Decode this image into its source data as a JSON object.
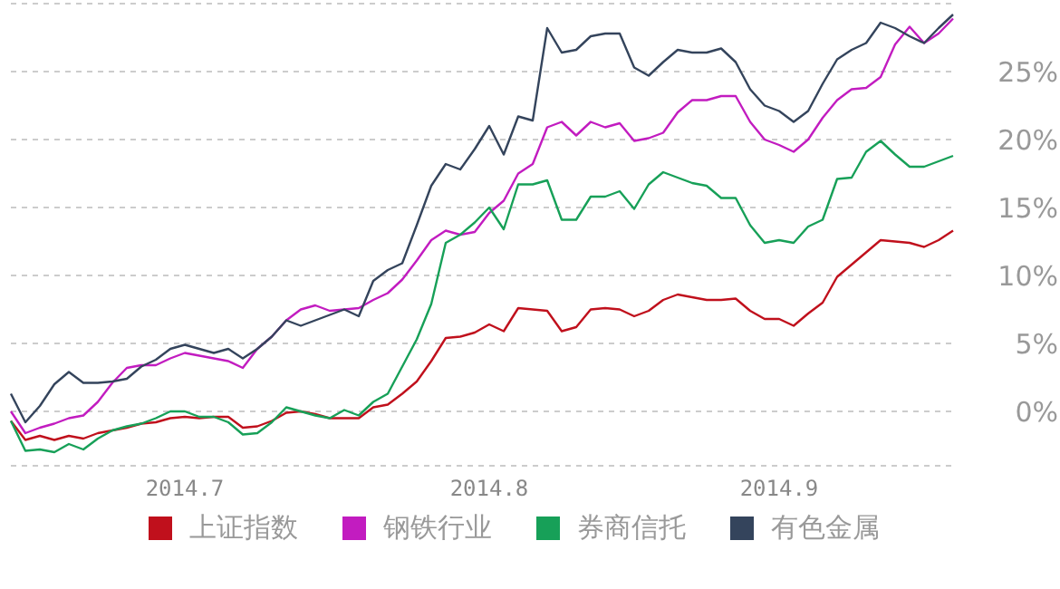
{
  "chart_data": {
    "type": "line",
    "categories": [
      null,
      null,
      null,
      null,
      null,
      null,
      null,
      null,
      null,
      null,
      null,
      null,
      "2014.7",
      null,
      null,
      null,
      null,
      null,
      null,
      null,
      null,
      null,
      null,
      null,
      null,
      null,
      null,
      null,
      null,
      null,
      null,
      null,
      null,
      "2014.8",
      null,
      null,
      null,
      null,
      null,
      null,
      null,
      null,
      null,
      null,
      null,
      null,
      null,
      null,
      null,
      null,
      null,
      null,
      null,
      "2014.9",
      null,
      null,
      null,
      null,
      null,
      null,
      null,
      null,
      null,
      null,
      null,
      null
    ],
    "series": [
      {
        "name": "上证指数",
        "color": "#c0101c",
        "values": [
          -0.7,
          -2.1,
          -1.8,
          -2.1,
          -1.8,
          -2.0,
          -1.6,
          -1.4,
          -1.2,
          -0.9,
          -0.8,
          -0.5,
          -0.4,
          -0.5,
          -0.4,
          -0.4,
          -1.2,
          -1.1,
          -0.7,
          -0.1,
          0,
          -0.2,
          -0.5,
          -0.5,
          -0.5,
          0.3,
          0.5,
          1.3,
          2.2,
          3.7,
          5.4,
          5.5,
          5.8,
          6.4,
          5.9,
          7.6,
          7.5,
          7.4,
          5.9,
          6.2,
          7.5,
          7.6,
          7.5,
          7.0,
          7.4,
          8.2,
          8.6,
          8.4,
          8.2,
          8.2,
          8.3,
          7.4,
          6.8,
          6.8,
          6.3,
          7.2,
          8.0,
          9.9,
          10.8,
          11.7,
          12.6,
          12.5,
          12.4,
          12.1,
          12.6,
          13.3
        ]
      },
      {
        "name": "钢铁行业",
        "color": "#c21cc0",
        "values": [
          0,
          -1.6,
          -1.2,
          -0.9,
          -0.5,
          -0.3,
          0.7,
          2.1,
          3.2,
          3.4,
          3.4,
          3.9,
          4.3,
          4.1,
          3.9,
          3.7,
          3.2,
          4.6,
          5.5,
          6.7,
          7.5,
          7.8,
          7.4,
          7.5,
          7.6,
          8.2,
          8.7,
          9.7,
          11.1,
          12.6,
          13.3,
          13.0,
          13.2,
          14.6,
          15.5,
          17.5,
          18.2,
          20.9,
          21.3,
          20.3,
          21.3,
          20.9,
          21.2,
          19.9,
          20.1,
          20.5,
          22.0,
          22.9,
          22.9,
          23.2,
          23.2,
          21.3,
          20.0,
          19.6,
          19.1,
          20.0,
          21.6,
          22.9,
          23.7,
          23.8,
          24.6,
          27.0,
          28.3,
          27.1,
          27.8,
          28.9
        ]
      },
      {
        "name": "券商信托",
        "color": "#17a058",
        "values": [
          -0.7,
          -2.9,
          -2.8,
          -3.0,
          -2.4,
          -2.8,
          -2.0,
          -1.4,
          -1.1,
          -0.9,
          -0.5,
          0,
          0,
          -0.4,
          -0.4,
          -0.8,
          -1.7,
          -1.6,
          -0.8,
          0.3,
          0,
          -0.3,
          -0.5,
          0.1,
          -0.3,
          0.7,
          1.3,
          3.3,
          5.3,
          7.9,
          12.4,
          13.0,
          13.9,
          15.0,
          13.4,
          16.7,
          16.7,
          17.0,
          14.1,
          14.1,
          15.8,
          15.8,
          16.2,
          14.9,
          16.7,
          17.6,
          17.2,
          16.8,
          16.6,
          15.7,
          15.7,
          13.7,
          12.4,
          12.6,
          12.4,
          13.6,
          14.1,
          17.1,
          17.2,
          19.1,
          19.9,
          18.9,
          18.0,
          18.0,
          18.4,
          18.8
        ]
      },
      {
        "name": "有色金属",
        "color": "#34445c",
        "values": [
          1.3,
          -0.8,
          0.4,
          2.0,
          2.9,
          2.1,
          2.1,
          2.2,
          2.4,
          3.3,
          3.8,
          4.6,
          4.9,
          4.6,
          4.3,
          4.6,
          3.9,
          4.6,
          5.5,
          6.7,
          6.3,
          6.7,
          7.1,
          7.5,
          7.0,
          9.6,
          10.4,
          10.9,
          13.7,
          16.6,
          18.2,
          17.8,
          19.3,
          21.0,
          18.9,
          21.7,
          21.4,
          28.2,
          26.4,
          26.6,
          27.6,
          27.8,
          27.8,
          25.3,
          24.7,
          25.7,
          26.6,
          26.4,
          26.4,
          26.7,
          25.7,
          23.7,
          22.5,
          22.1,
          21.3,
          22.1,
          24.1,
          25.9,
          26.6,
          27.1,
          28.6,
          28.2,
          27.6,
          27.1,
          28.2,
          29.2
        ]
      }
    ],
    "ylim": [
      -4,
      30
    ],
    "yticks": [
      {
        "value": 0,
        "label": "0%"
      },
      {
        "value": 5,
        "label": "5%"
      },
      {
        "value": 10,
        "label": "10%"
      },
      {
        "value": 15,
        "label": "15%"
      },
      {
        "value": 20,
        "label": "20%"
      },
      {
        "value": 25,
        "label": "25%"
      }
    ],
    "grid": "y",
    "legend": "bottom",
    "marker": "none",
    "line_style": "solid"
  }
}
